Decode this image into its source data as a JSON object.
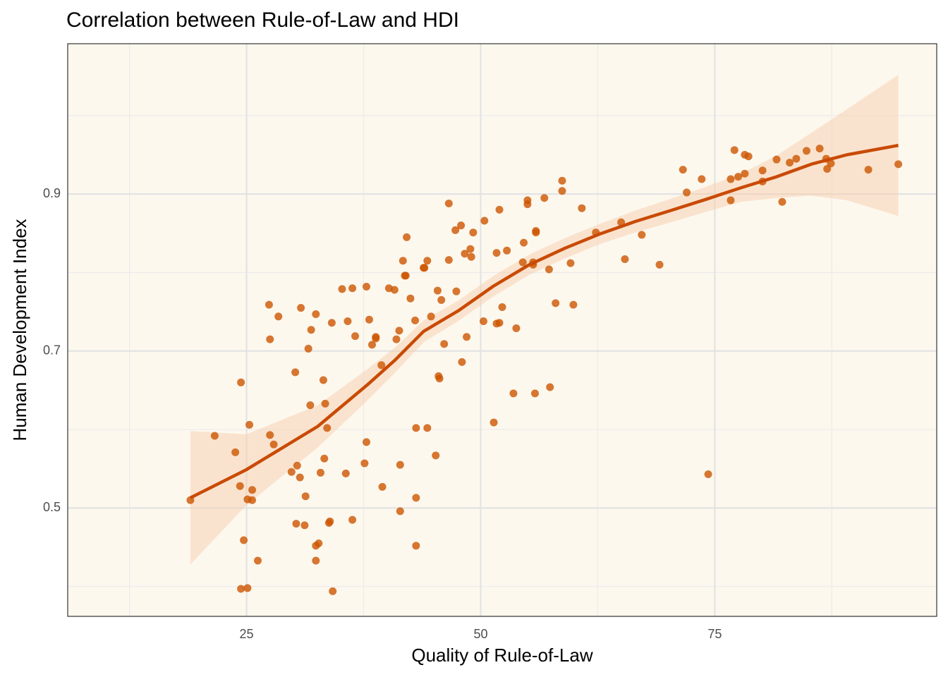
{
  "chart_data": {
    "type": "scatter",
    "title": "Correlation between Rule-of-Law and HDI",
    "x_label": "Quality of Rule-of-Law",
    "y_label": "Human Development Index",
    "x": [
      19.0,
      21.6,
      23.8,
      24.3,
      24.4,
      24.4,
      24.7,
      25.1,
      25.1,
      25.3,
      25.6,
      25.6,
      26.2,
      27.4,
      27.5,
      27.5,
      27.9,
      28.4,
      29.8,
      30.2,
      30.3,
      30.4,
      30.7,
      30.8,
      31.2,
      31.3,
      31.6,
      31.8,
      31.9,
      32.4,
      32.4,
      32.4,
      32.7,
      32.9,
      33.2,
      33.3,
      33.4,
      33.6,
      33.8,
      33.9,
      34.1,
      34.2,
      35.2,
      35.6,
      35.8,
      36.3,
      36.3,
      36.6,
      37.6,
      37.8,
      37.8,
      38.1,
      38.4,
      38.8,
      38.8,
      39.4,
      39.5,
      40.2,
      40.8,
      41.0,
      41.3,
      41.4,
      41.4,
      41.7,
      41.9,
      42.0,
      42.1,
      42.5,
      43.0,
      43.1,
      43.1,
      43.1,
      43.9,
      44.0,
      44.3,
      44.3,
      44.7,
      45.2,
      45.4,
      45.5,
      45.6,
      45.8,
      46.1,
      46.6,
      46.6,
      47.3,
      47.4,
      47.9,
      48.0,
      48.3,
      48.5,
      48.9,
      49.0,
      49.2,
      50.3,
      50.4,
      51.4,
      51.7,
      51.7,
      52.0,
      52.0,
      52.3,
      52.8,
      53.5,
      53.8,
      54.5,
      54.6,
      55.0,
      55.0,
      55.6,
      55.6,
      55.8,
      55.9,
      55.9,
      56.8,
      57.3,
      57.4,
      58.0,
      58.7,
      58.7,
      59.6,
      59.9,
      60.8,
      62.3,
      65.0,
      65.4,
      67.2,
      69.1,
      71.6,
      72.0,
      73.6,
      74.3,
      76.7,
      76.7,
      77.1,
      77.5,
      78.2,
      78.2,
      78.6,
      80.1,
      80.1,
      81.6,
      82.2,
      83.0,
      83.7,
      84.8,
      86.2,
      86.9,
      87.0,
      87.4,
      91.4,
      94.6
    ],
    "y": [
      0.51,
      0.592,
      0.571,
      0.528,
      0.66,
      0.397,
      0.459,
      0.398,
      0.511,
      0.606,
      0.523,
      0.51,
      0.433,
      0.759,
      0.715,
      0.593,
      0.581,
      0.744,
      0.546,
      0.673,
      0.48,
      0.554,
      0.539,
      0.755,
      0.478,
      0.515,
      0.703,
      0.631,
      0.727,
      0.452,
      0.433,
      0.747,
      0.455,
      0.545,
      0.663,
      0.563,
      0.633,
      0.602,
      0.481,
      0.483,
      0.736,
      0.394,
      0.779,
      0.544,
      0.738,
      0.78,
      0.485,
      0.719,
      0.557,
      0.584,
      0.782,
      0.74,
      0.708,
      0.716,
      0.718,
      0.682,
      0.527,
      0.78,
      0.778,
      0.715,
      0.726,
      0.555,
      0.496,
      0.815,
      0.796,
      0.796,
      0.845,
      0.767,
      0.739,
      0.602,
      0.513,
      0.452,
      0.806,
      0.806,
      0.815,
      0.602,
      0.744,
      0.567,
      0.777,
      0.668,
      0.665,
      0.765,
      0.709,
      0.888,
      0.816,
      0.854,
      0.776,
      0.86,
      0.686,
      0.824,
      0.718,
      0.83,
      0.82,
      0.851,
      0.738,
      0.866,
      0.609,
      0.735,
      0.825,
      0.736,
      0.88,
      0.756,
      0.828,
      0.646,
      0.729,
      0.813,
      0.838,
      0.887,
      0.892,
      0.813,
      0.81,
      0.646,
      0.853,
      0.851,
      0.895,
      0.804,
      0.654,
      0.761,
      0.904,
      0.917,
      0.812,
      0.759,
      0.882,
      0.851,
      0.864,
      0.817,
      0.848,
      0.81,
      0.931,
      0.902,
      0.919,
      0.543,
      0.892,
      0.919,
      0.956,
      0.922,
      0.95,
      0.926,
      0.948,
      0.93,
      0.916,
      0.944,
      0.89,
      0.94,
      0.945,
      0.955,
      0.958,
      0.945,
      0.932,
      0.939,
      0.931,
      0.938
    ],
    "color": "#cc5500",
    "trend": {
      "color": "#c94a05",
      "band_color": "#f6c9a6",
      "x": [
        19.0,
        25.0,
        32.6,
        37.9,
        40.9,
        43.9,
        47.7,
        51.4,
        55.2,
        59.0,
        62.7,
        66.5,
        70.3,
        74.0,
        77.8,
        81.6,
        85.3,
        89.1,
        94.6
      ],
      "y": [
        0.513,
        0.549,
        0.604,
        0.657,
        0.689,
        0.725,
        0.752,
        0.783,
        0.81,
        0.831,
        0.849,
        0.865,
        0.879,
        0.893,
        0.908,
        0.922,
        0.938,
        0.95,
        0.962
      ],
      "lower": [
        0.428,
        0.504,
        0.577,
        0.637,
        0.673,
        0.711,
        0.739,
        0.77,
        0.797,
        0.818,
        0.836,
        0.851,
        0.864,
        0.877,
        0.89,
        0.895,
        0.898,
        0.892,
        0.872
      ],
      "upper": [
        0.598,
        0.594,
        0.631,
        0.677,
        0.705,
        0.739,
        0.765,
        0.796,
        0.823,
        0.844,
        0.862,
        0.879,
        0.894,
        0.909,
        0.926,
        0.949,
        0.978,
        1.008,
        1.052
      ]
    },
    "xlim": [
      5.9,
      98.7
    ],
    "ylim": [
      0.362,
      1.0915
    ],
    "xticks": [
      25,
      50,
      75
    ],
    "yticks": [
      0.5,
      0.7,
      0.9
    ],
    "x_minor_ticks": [
      12.5,
      37.5,
      62.5,
      87.5
    ],
    "y_minor_ticks": [
      0.4,
      0.6,
      0.8,
      1.0
    ],
    "grid": true,
    "background": "#fdf8ee"
  }
}
